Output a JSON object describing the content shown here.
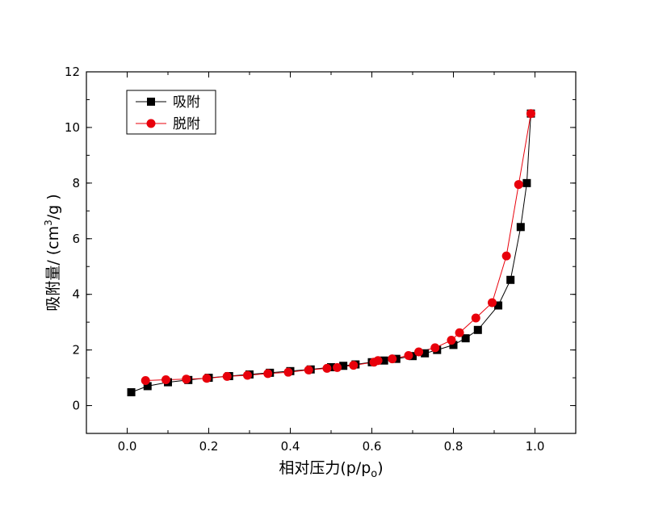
{
  "chart_data": {
    "type": "scatter",
    "title": "",
    "xlabel": "相对压力(p/p",
    "xlabel_sub": "o",
    "xlabel_close": ")",
    "ylabel": "吸附量/ (cm",
    "ylabel_sup": "3",
    "ylabel_close": "/g )",
    "xlim": [
      -0.1,
      1.1
    ],
    "ylim": [
      -1,
      12
    ],
    "xticks": [
      0.0,
      0.2,
      0.4,
      0.6,
      0.8,
      1.0
    ],
    "xtick_labels": [
      "0.0",
      "0.2",
      "0.4",
      "0.6",
      "0.8",
      "1.0"
    ],
    "yticks": [
      0,
      2,
      4,
      6,
      8,
      10,
      12
    ],
    "ytick_labels": [
      "0",
      "2",
      "4",
      "6",
      "8",
      "10",
      "12"
    ],
    "grid": false,
    "legend_position": "top-left",
    "series": [
      {
        "name": "吸附",
        "color": "#000000",
        "marker": "square",
        "x": [
          0.01,
          0.05,
          0.1,
          0.15,
          0.2,
          0.25,
          0.3,
          0.35,
          0.4,
          0.45,
          0.5,
          0.53,
          0.56,
          0.6,
          0.63,
          0.66,
          0.7,
          0.73,
          0.76,
          0.8,
          0.83,
          0.86,
          0.91,
          0.94,
          0.965,
          0.98,
          0.99
        ],
        "y": [
          0.48,
          0.7,
          0.84,
          0.92,
          1.0,
          1.06,
          1.12,
          1.18,
          1.24,
          1.3,
          1.38,
          1.43,
          1.48,
          1.56,
          1.62,
          1.68,
          1.78,
          1.88,
          2.0,
          2.18,
          2.42,
          2.72,
          3.6,
          4.52,
          6.42,
          8.0,
          10.5
        ]
      },
      {
        "name": "脱附",
        "color": "#e8000b",
        "marker": "circle",
        "x": [
          0.045,
          0.095,
          0.145,
          0.195,
          0.245,
          0.295,
          0.345,
          0.395,
          0.445,
          0.49,
          0.515,
          0.555,
          0.605,
          0.615,
          0.65,
          0.69,
          0.715,
          0.755,
          0.795,
          0.815,
          0.855,
          0.895,
          0.93,
          0.96,
          0.99
        ],
        "y": [
          0.9,
          0.93,
          0.95,
          0.98,
          1.05,
          1.09,
          1.15,
          1.2,
          1.28,
          1.34,
          1.37,
          1.45,
          1.56,
          1.62,
          1.68,
          1.8,
          1.93,
          2.08,
          2.35,
          2.62,
          3.15,
          3.7,
          5.38,
          7.95,
          10.5
        ]
      }
    ]
  }
}
